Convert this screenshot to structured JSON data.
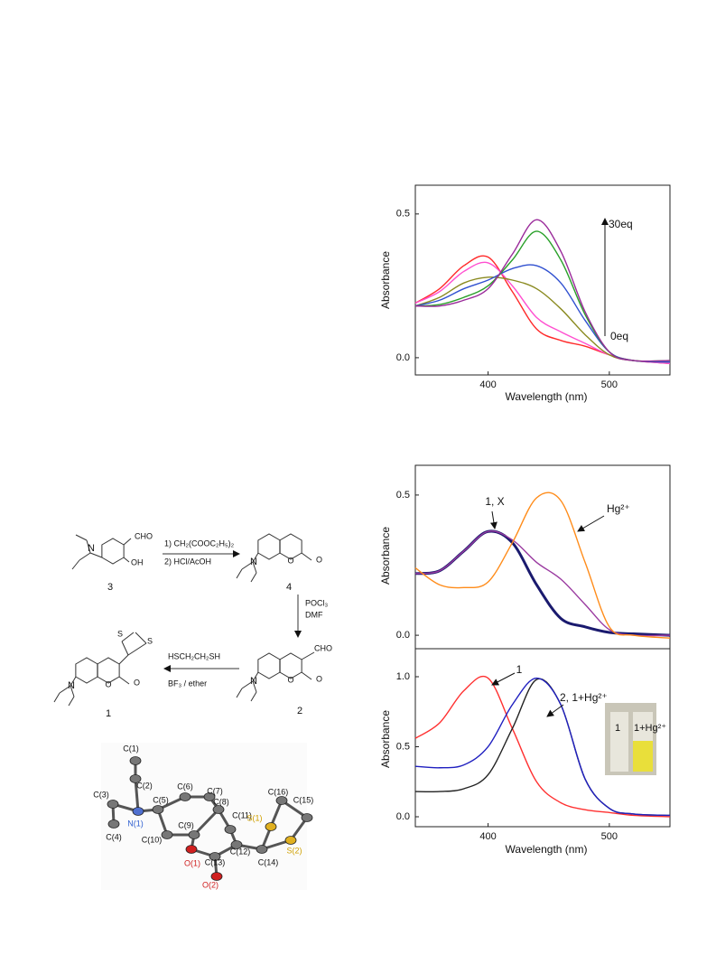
{
  "chart_data": [
    {
      "type": "line",
      "x_label": "Wavelength (nm)",
      "y_label": "Absorbance",
      "x": [
        340,
        360,
        380,
        400,
        420,
        440,
        460,
        480,
        500,
        520,
        550
      ],
      "xlim": [
        340,
        550
      ],
      "xticks": [
        400,
        500
      ],
      "ylim": [
        -0.06,
        0.6
      ],
      "yticks": [
        {
          "value": 0,
          "label": "0.0"
        },
        {
          "value": 0.5,
          "label": "0.5"
        }
      ],
      "series": [
        {
          "color": "#ff2a2a",
          "values": [
            0.19,
            0.24,
            0.32,
            0.35,
            0.23,
            0.1,
            0.06,
            0.04,
            0.01,
            -0.01,
            -0.02
          ]
        },
        {
          "color": "#ff4fd0",
          "values": [
            0.19,
            0.23,
            0.3,
            0.33,
            0.25,
            0.14,
            0.09,
            0.05,
            0.01,
            -0.01,
            -0.02
          ]
        },
        {
          "color": "#8a8a20",
          "values": [
            0.18,
            0.21,
            0.26,
            0.28,
            0.27,
            0.24,
            0.17,
            0.08,
            0.01,
            -0.01,
            -0.015
          ]
        },
        {
          "color": "#3050d0",
          "values": [
            0.18,
            0.2,
            0.24,
            0.27,
            0.31,
            0.32,
            0.26,
            0.13,
            0.02,
            -0.01,
            -0.015
          ]
        },
        {
          "color": "#2aa02a",
          "values": [
            0.18,
            0.185,
            0.21,
            0.25,
            0.34,
            0.44,
            0.34,
            0.15,
            0.02,
            -0.01,
            -0.01
          ]
        },
        {
          "color": "#9a2a9a",
          "values": [
            0.18,
            0.18,
            0.2,
            0.24,
            0.36,
            0.48,
            0.37,
            0.16,
            0.02,
            -0.01,
            -0.01
          ]
        }
      ],
      "annotations": [
        "30eq",
        "0eq"
      ]
    },
    {
      "type": "line",
      "y_label": "Absorbance",
      "x": [
        340,
        360,
        380,
        400,
        420,
        440,
        460,
        480,
        500,
        520,
        550
      ],
      "xlim": [
        340,
        550
      ],
      "ylim": [
        -0.048,
        0.606
      ],
      "yticks": [
        {
          "value": 0,
          "label": "0.0"
        },
        {
          "value": 0.5,
          "label": "0.5"
        }
      ],
      "series": [
        {
          "color": "#1a1a6e",
          "values": [
            0.22,
            0.23,
            0.3,
            0.37,
            0.33,
            0.18,
            0.06,
            0.03,
            0.01,
            0.005,
            0
          ]
        },
        {
          "color": "#9a3aa0",
          "values": [
            0.22,
            0.23,
            0.3,
            0.37,
            0.34,
            0.26,
            0.2,
            0.11,
            0.02,
            0,
            0
          ]
        },
        {
          "color": "#ff8c1a",
          "values": [
            0.24,
            0.18,
            0.17,
            0.19,
            0.33,
            0.49,
            0.48,
            0.26,
            0.03,
            0,
            -0.01
          ]
        }
      ],
      "annotations": [
        "1, X",
        "Hg²⁺"
      ]
    },
    {
      "type": "line",
      "x_label": "Wavelength (nm)",
      "y_label": "Absorbance",
      "x": [
        340,
        360,
        380,
        400,
        420,
        440,
        460,
        480,
        500,
        520,
        550
      ],
      "xlim": [
        340,
        550
      ],
      "xticks": [
        400,
        500
      ],
      "ylim": [
        -0.071,
        1.2
      ],
      "yticks": [
        {
          "value": 0,
          "label": "0.0"
        },
        {
          "value": 0.5,
          "label": "0.5"
        },
        {
          "value": 1,
          "label": "1.0"
        }
      ],
      "series": [
        {
          "color": "#ff3030",
          "values": [
            0.56,
            0.67,
            0.9,
            0.99,
            0.63,
            0.25,
            0.1,
            0.05,
            0.03,
            0.01,
            0
          ]
        },
        {
          "color": "#222222",
          "values": [
            0.18,
            0.18,
            0.2,
            0.3,
            0.63,
            0.98,
            0.8,
            0.27,
            0.06,
            0.02,
            0.01
          ]
        },
        {
          "color": "#2020c0",
          "values": [
            0.36,
            0.35,
            0.37,
            0.5,
            0.8,
            0.99,
            0.8,
            0.27,
            0.06,
            0.02,
            0.01
          ]
        }
      ],
      "annotations": [
        "1",
        "2, 1+Hg²⁺"
      ],
      "inset_labels": [
        "1",
        "1+Hg²⁺"
      ]
    }
  ],
  "scheme": {
    "compounds": [
      {
        "label": "3",
        "atoms": [
          "N",
          "CHO",
          "OH"
        ]
      },
      {
        "label": "4",
        "atoms": [
          "N",
          "O",
          "O"
        ]
      },
      {
        "label": "2",
        "atoms": [
          "N",
          "O",
          "O",
          "CHO"
        ]
      },
      {
        "label": "1",
        "atoms": [
          "N",
          "O",
          "O",
          "S",
          "S"
        ]
      }
    ],
    "steps": [
      [
        "1) CH₂(COOC₂H₅)₂",
        "2) HCl/AcOH"
      ],
      [
        "POCl₃",
        "DMF"
      ],
      [
        "HSCH₂CH₂SH",
        "BF₃ / ether"
      ]
    ]
  },
  "crystal": {
    "labels": [
      "C(1)",
      "C(2)",
      "C(3)",
      "C(4)",
      "C(5)",
      "C(6)",
      "C(7)",
      "C(8)",
      "C(9)",
      "C(10)",
      "C(11)",
      "C(12)",
      "C(13)",
      "C(14)",
      "C(15)",
      "C(16)",
      "N(1)",
      "O(1)",
      "O(2)",
      "S(1)",
      "S(2)"
    ]
  }
}
